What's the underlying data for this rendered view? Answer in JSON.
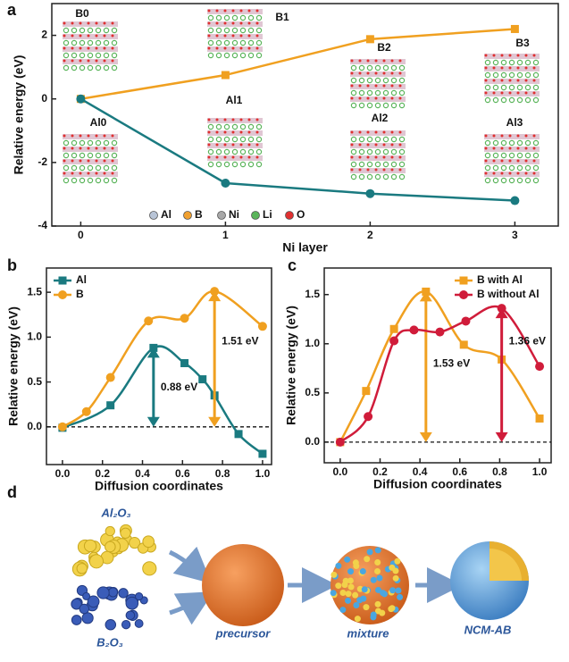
{
  "chart_data": [
    {
      "type": "line",
      "panel": "a",
      "xlabel": "Ni layer",
      "ylabel": "Relative energy (eV)",
      "x": [
        0,
        1,
        2,
        3
      ],
      "xlim": [
        -0.2,
        3.3
      ],
      "xticks": [
        0,
        1,
        2,
        3
      ],
      "ylim": [
        -4,
        3
      ],
      "yticks": [
        -4,
        -2,
        0,
        2
      ],
      "smooth": false,
      "series": [
        {
          "name": "B",
          "color": "#f0a020",
          "marker": "square",
          "values": [
            0,
            0.75,
            1.88,
            2.2
          ]
        },
        {
          "name": "Al",
          "color": "#1a7a80",
          "marker": "circle",
          "values": [
            0,
            -2.65,
            -2.98,
            -3.2
          ]
        }
      ],
      "structures": [
        "B0",
        "B1",
        "B2",
        "B3",
        "Al0",
        "Al1",
        "Al2",
        "Al3"
      ],
      "atom_legend": [
        {
          "name": "Al",
          "color": "#b8c4d6"
        },
        {
          "name": "B",
          "color": "#f0a030"
        },
        {
          "name": "Ni",
          "color": "#a8a8a8"
        },
        {
          "name": "Li",
          "color": "#5ab45a"
        },
        {
          "name": "O",
          "color": "#e03030"
        }
      ]
    },
    {
      "type": "line",
      "panel": "b",
      "xlabel": "Diffusion coordinates",
      "ylabel": "Relative energy (eV)",
      "xlim": [
        -0.08,
        1.045
      ],
      "xticks": [
        {
          "value": 0,
          "label": "0.0"
        },
        0.2,
        0.4,
        0.6,
        0.8,
        {
          "value": 1,
          "label": "1.0"
        }
      ],
      "ylim": [
        -0.42,
        1.77
      ],
      "yticks": [
        {
          "value": 0,
          "label": "0.0"
        },
        0.5,
        {
          "value": 1,
          "label": "1.0"
        },
        1.5
      ],
      "smooth": true,
      "zero_line": true,
      "legend": "upper left",
      "series": [
        {
          "name": "Al",
          "color": "#1a7a80",
          "marker": "square",
          "x": [
            0,
            0.24,
            0.455,
            0.61,
            0.7,
            0.76,
            0.88,
            1.0
          ],
          "values": [
            -0.01,
            0.24,
            0.88,
            0.71,
            0.53,
            0.35,
            -0.08,
            -0.3
          ]
        },
        {
          "name": "B",
          "color": "#f0a020",
          "marker": "circle",
          "x": [
            0,
            0.12,
            0.24,
            0.43,
            0.61,
            0.76,
            1.0
          ],
          "values": [
            0,
            0.17,
            0.55,
            1.18,
            1.21,
            1.51,
            1.12
          ]
        }
      ],
      "annotations": [
        "0.88 eV",
        "1.51 eV"
      ]
    },
    {
      "type": "line",
      "panel": "c",
      "xlabel": "Diffusion coordinates",
      "ylabel": "Relative energy (eV)",
      "xlim": [
        -0.08,
        1.058
      ],
      "xticks": [
        {
          "value": 0,
          "label": "0.0"
        },
        0.2,
        0.4,
        0.6,
        0.8,
        {
          "value": 1,
          "label": "1.0"
        }
      ],
      "ylim": [
        -0.21,
        1.77
      ],
      "yticks": [
        {
          "value": 0,
          "label": "0.0"
        },
        0.5,
        {
          "value": 1,
          "label": "1.0"
        },
        1.5
      ],
      "smooth": true,
      "zero_line": true,
      "legend": "upper right",
      "series": [
        {
          "name": "B with Al",
          "color": "#f0a020",
          "marker": "square",
          "x": [
            0,
            0.13,
            0.27,
            0.43,
            0.62,
            0.81,
            1.0
          ],
          "values": [
            0,
            0.52,
            1.15,
            1.53,
            0.99,
            0.84,
            0.24
          ]
        },
        {
          "name": "B without Al",
          "color": "#d01c3a",
          "marker": "circle",
          "x": [
            0,
            0.14,
            0.27,
            0.37,
            0.5,
            0.63,
            0.81,
            1.0
          ],
          "values": [
            0,
            0.26,
            1.03,
            1.14,
            1.12,
            1.23,
            1.36,
            0.77
          ]
        }
      ],
      "annotations": [
        "1.53 eV",
        "1.36 eV"
      ]
    }
  ],
  "schematic": {
    "panel": "d",
    "reagent_1": "Al₂O₃",
    "reagent_2": "B₂O₃",
    "step_1": "precursor",
    "step_2": "mixture",
    "step_3": "NCM-AB"
  }
}
